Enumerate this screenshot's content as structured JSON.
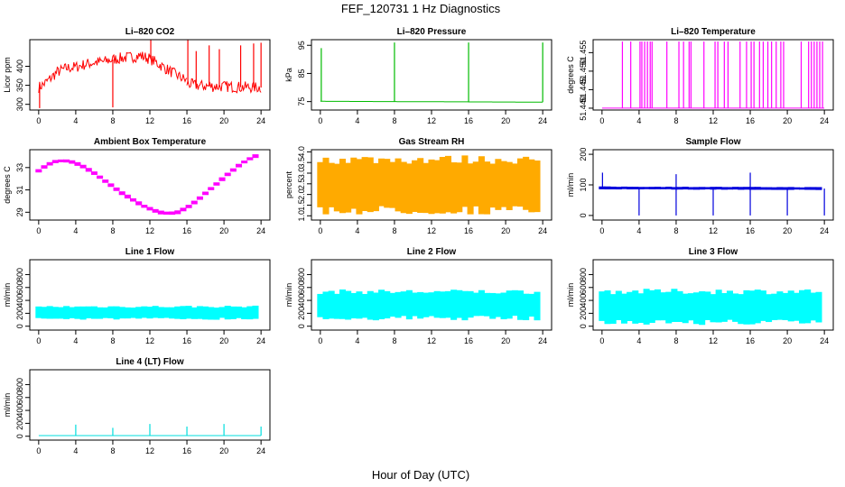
{
  "figure": {
    "title": "FEF_120731  1 Hz Diagnostics",
    "xlabel": "Hour of Day (UTC)"
  },
  "chart_data": [
    {
      "type": "line",
      "title": "Li–820 CO2",
      "ylabel": "Licor ppm",
      "color": "#ff0000",
      "xticks": [
        0,
        4,
        8,
        12,
        16,
        20,
        24
      ],
      "yticks": [
        "300",
        "350",
        "400"
      ],
      "ylim": [
        285,
        470
      ],
      "segments": [
        {
          "x": [
            0,
            0.5,
            1,
            2,
            3,
            4,
            5,
            6,
            7,
            8,
            9,
            10,
            11,
            12,
            13,
            14,
            15,
            16
          ],
          "y": [
            345,
            352,
            362,
            385,
            395,
            398,
            405,
            410,
            412,
            418,
            422,
            424,
            428,
            420,
            405,
            390,
            375,
            362
          ]
        },
        {
          "x": [
            16,
            17,
            18,
            19,
            20,
            21,
            22,
            23,
            24
          ],
          "y": [
            355,
            350,
            348,
            347,
            347,
            346,
            345,
            345,
            344
          ]
        }
      ],
      "spikes": [
        {
          "x": 0.1,
          "y": 290
        },
        {
          "x": 8.0,
          "y": 292
        },
        {
          "x": 12.1,
          "y": 470
        },
        {
          "x": 16.1,
          "y": 470
        },
        {
          "x": 17.0,
          "y": 440
        },
        {
          "x": 18.4,
          "y": 455
        },
        {
          "x": 19.5,
          "y": 445
        },
        {
          "x": 21.8,
          "y": 455
        },
        {
          "x": 23.2,
          "y": 460
        },
        {
          "x": 24.0,
          "y": 462
        }
      ]
    },
    {
      "type": "line",
      "title": "Li–820 Pressure",
      "ylabel": "kPa",
      "color": "#00bb00",
      "xticks": [
        0,
        4,
        8,
        12,
        16,
        20,
        24
      ],
      "yticks": [
        "75",
        "85",
        "95"
      ],
      "ylim": [
        72,
        97
      ],
      "segments": [
        {
          "x": [
            0,
            24
          ],
          "y": [
            75.1,
            74.8
          ]
        }
      ],
      "spikes": [
        {
          "x": 0.1,
          "y": 94
        },
        {
          "x": 8.0,
          "y": 96
        },
        {
          "x": 16.0,
          "y": 96
        },
        {
          "x": 24.0,
          "y": 96
        }
      ]
    },
    {
      "type": "line",
      "title": "Li–820 Temperature",
      "ylabel": "degrees C",
      "color": "#ff00ff",
      "xticks": [
        0,
        4,
        8,
        12,
        16,
        20,
        24
      ],
      "yticks": [
        "51.440",
        "51.445",
        "51.450",
        "51.455"
      ],
      "ylim": [
        51.4395,
        51.4585
      ],
      "segments": [
        {
          "x": [
            0,
            24
          ],
          "y": [
            51.44,
            51.44
          ]
        }
      ],
      "spikes": [
        {
          "x": 2.2,
          "y": 51.458
        },
        {
          "x": 3.1,
          "y": 51.458
        },
        {
          "x": 4.1,
          "y": 51.458
        },
        {
          "x": 4.3,
          "y": 51.458
        },
        {
          "x": 4.6,
          "y": 51.458
        },
        {
          "x": 4.9,
          "y": 51.458
        },
        {
          "x": 5.2,
          "y": 51.458
        },
        {
          "x": 5.4,
          "y": 51.458
        },
        {
          "x": 7.0,
          "y": 51.458
        },
        {
          "x": 8.3,
          "y": 51.458
        },
        {
          "x": 8.8,
          "y": 51.458
        },
        {
          "x": 9.4,
          "y": 51.458
        },
        {
          "x": 9.6,
          "y": 51.458
        },
        {
          "x": 11.0,
          "y": 51.458
        },
        {
          "x": 12.2,
          "y": 51.458
        },
        {
          "x": 12.5,
          "y": 51.458
        },
        {
          "x": 13.2,
          "y": 51.458
        },
        {
          "x": 13.6,
          "y": 51.458
        },
        {
          "x": 14.9,
          "y": 51.458
        },
        {
          "x": 15.6,
          "y": 51.458
        },
        {
          "x": 16.1,
          "y": 51.458
        },
        {
          "x": 16.4,
          "y": 51.458
        },
        {
          "x": 17.0,
          "y": 51.458
        },
        {
          "x": 17.4,
          "y": 51.458
        },
        {
          "x": 17.9,
          "y": 51.458
        },
        {
          "x": 18.3,
          "y": 51.458
        },
        {
          "x": 18.8,
          "y": 51.458
        },
        {
          "x": 19.3,
          "y": 51.458
        },
        {
          "x": 19.6,
          "y": 51.458
        },
        {
          "x": 21.5,
          "y": 51.458
        },
        {
          "x": 22.3,
          "y": 51.458
        },
        {
          "x": 22.6,
          "y": 51.458
        },
        {
          "x": 22.9,
          "y": 51.458
        },
        {
          "x": 23.2,
          "y": 51.458
        },
        {
          "x": 23.5,
          "y": 51.458
        },
        {
          "x": 23.8,
          "y": 51.458
        }
      ]
    },
    {
      "type": "line",
      "title": "Ambient Box Temperature",
      "ylabel": "degrees C",
      "color": "#ff00ff",
      "xticks": [
        0,
        4,
        8,
        12,
        16,
        20,
        24
      ],
      "yticks": [
        "29",
        "31",
        "33"
      ],
      "ylim": [
        28.3,
        34.6
      ],
      "band": 0.35,
      "segments": [
        {
          "x": [
            0,
            1,
            2,
            3,
            4,
            5,
            6,
            7,
            8,
            9,
            10,
            11,
            12,
            13,
            14,
            15,
            16,
            17,
            18,
            19,
            20,
            21,
            22,
            23,
            24
          ],
          "y": [
            32.7,
            33.3,
            33.6,
            33.6,
            33.4,
            33.0,
            32.5,
            31.9,
            31.3,
            30.7,
            30.2,
            29.7,
            29.3,
            29.0,
            28.9,
            29.0,
            29.4,
            30.0,
            30.7,
            31.4,
            32.1,
            32.8,
            33.4,
            33.9,
            34.2
          ]
        }
      ],
      "spikes": []
    },
    {
      "type": "line",
      "title": "Gas Stream RH",
      "ylabel": "percent",
      "color": "#ffaa00",
      "xticks": [
        0,
        4,
        8,
        12,
        16,
        20,
        24
      ],
      "yticks": [
        "1.0",
        "1.5",
        "2.0",
        "2.5",
        "3.0",
        "3.5",
        "4.0"
      ],
      "ylim": [
        0.8,
        4.1
      ],
      "band": 2.8,
      "segments": [
        {
          "x": [
            0,
            24
          ],
          "y": [
            2.45,
            2.45
          ]
        }
      ],
      "spikes": []
    },
    {
      "type": "line",
      "title": "Sample Flow",
      "ylabel": "ml/min",
      "color": "#0000dd",
      "xticks": [
        0,
        4,
        8,
        12,
        16,
        20,
        24
      ],
      "yticks": [
        "0",
        "100",
        "200"
      ],
      "ylim": [
        -15,
        215
      ],
      "band": 10,
      "segments": [
        {
          "x": [
            0,
            24
          ],
          "y": [
            90,
            88
          ]
        }
      ],
      "spikes": [
        {
          "x": 0.05,
          "y": 140
        },
        {
          "x": 4.0,
          "y": 0
        },
        {
          "x": 8.0,
          "y": 0
        },
        {
          "x": 8.0,
          "y": 135
        },
        {
          "x": 12.0,
          "y": 0
        },
        {
          "x": 16.0,
          "y": 0
        },
        {
          "x": 16.0,
          "y": 140
        },
        {
          "x": 20.0,
          "y": 0
        },
        {
          "x": 24.0,
          "y": 0
        }
      ]
    },
    {
      "type": "line",
      "title": "Line 1 Flow",
      "ylabel": "ml/min",
      "color": "#00ffff",
      "xticks": [
        0,
        4,
        8,
        12,
        16,
        20,
        24
      ],
      "yticks": [
        "0",
        "200",
        "400",
        "600",
        "800"
      ],
      "ylim": [
        -60,
        1030
      ],
      "band": 220,
      "segments": [
        {
          "x": [
            0,
            24
          ],
          "y": [
            210,
            210
          ]
        }
      ],
      "spikes": []
    },
    {
      "type": "line",
      "title": "Line 2 Flow",
      "ylabel": "ml/min",
      "color": "#00ffff",
      "xticks": [
        0,
        4,
        8,
        12,
        16,
        20,
        24
      ],
      "yticks": [
        "0",
        "200",
        "400",
        "600",
        "800"
      ],
      "ylim": [
        -60,
        1030
      ],
      "band": 480,
      "segments": [
        {
          "x": [
            0,
            24
          ],
          "y": [
            330,
            330
          ]
        }
      ],
      "spikes": []
    },
    {
      "type": "line",
      "title": "Line 3 Flow",
      "ylabel": "ml/min",
      "color": "#00ffff",
      "xticks": [
        0,
        4,
        8,
        12,
        16,
        20,
        24
      ],
      "yticks": [
        "0",
        "200",
        "400",
        "600",
        "800"
      ],
      "ylim": [
        -60,
        1030
      ],
      "band": 560,
      "segments": [
        {
          "x": [
            0,
            24
          ],
          "y": [
            300,
            300
          ]
        }
      ],
      "spikes": []
    },
    {
      "type": "line",
      "title": "Line 4 (LT) Flow",
      "ylabel": "ml/min",
      "color": "#00dddd",
      "xticks": [
        0,
        4,
        8,
        12,
        16,
        20,
        24
      ],
      "yticks": [
        "0",
        "200",
        "400",
        "600",
        "800"
      ],
      "ylim": [
        -60,
        1030
      ],
      "segments": [
        {
          "x": [
            0,
            24
          ],
          "y": [
            10,
            10
          ]
        }
      ],
      "spikes": [
        {
          "x": 4.0,
          "y": 180
        },
        {
          "x": 8.0,
          "y": 130
        },
        {
          "x": 12.0,
          "y": 190
        },
        {
          "x": 16.0,
          "y": 150
        },
        {
          "x": 20.0,
          "y": 190
        },
        {
          "x": 24.0,
          "y": 150
        }
      ]
    }
  ]
}
